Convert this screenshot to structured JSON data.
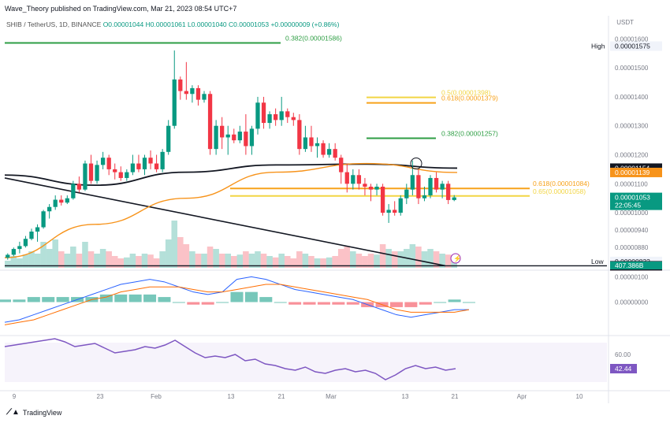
{
  "header": {
    "published": "Wave_Theory published on TradingView.com, Mar 21, 2023 08:54 UTC+7"
  },
  "ohlc": {
    "symbol": "SHIB / TetherUS, 1D, BINANCE",
    "open": "O0.00001044",
    "high": "H0.00001061",
    "low": "L0.00001040",
    "close": "C0.00001053",
    "change": "+0.00000009 (+0.86%)"
  },
  "currency": "USDT",
  "colors": {
    "up": "#089981",
    "down": "#f23645",
    "ema": "#f7931a",
    "ema200": "#131722",
    "fib_green": "#2e9e44",
    "fib_orange": "#f7a21b",
    "fib_yellow": "#f2d544",
    "macd": "#2962ff",
    "signal": "#ff6d00",
    "rsi": "#7e57c2"
  },
  "chart_data": [
    {
      "type": "line",
      "panel": "price",
      "ylim": [
        8.1e-06,
        1.62e-05
      ],
      "y_ticks": [
        "0.00001600",
        "0.00001500",
        "0.00001400",
        "0.00001300",
        "0.00001200",
        "0.00001100",
        "0.00001000",
        "0.00000940",
        "0.00000880"
      ],
      "x_ticks": [
        "9",
        "23",
        "Feb",
        "13",
        "21",
        "Mar",
        "13",
        "21",
        "Apr",
        "10"
      ],
      "candles": [
        [
          8.45e-06,
          8.6e-06,
          8.38e-06,
          8.55e-06
        ],
        [
          8.55e-06,
          8.8e-06,
          8.5e-06,
          8.75e-06
        ],
        [
          8.75e-06,
          9e-06,
          8.6e-06,
          8.85e-06
        ],
        [
          8.85e-06,
          9.2e-06,
          8.8e-06,
          9.1e-06
        ],
        [
          9.1e-06,
          9.45e-06,
          9.05e-06,
          9.35e-06
        ],
        [
          9.35e-06,
          9.6e-06,
          9e-06,
          9.5e-06
        ],
        [
          9.5e-06,
          1.01e-05,
          9.45e-06,
          1.005e-05
        ],
        [
          1.005e-05,
          1.03e-05,
          9.8e-06,
          1.02e-05
        ],
        [
          1.02e-05,
          1.06e-05,
          1.01e-05,
          1.045e-05
        ],
        [
          1.045e-05,
          1.06e-05,
          1.025e-05,
          1.035e-05
        ],
        [
          1.035e-05,
          1.06e-05,
          1.03e-05,
          1.05e-05
        ],
        [
          1.05e-05,
          1.11e-05,
          1.045e-05,
          1.1e-05
        ],
        [
          1.1e-05,
          1.125e-05,
          1.07e-05,
          1.08e-05
        ],
        [
          1.08e-05,
          1.18e-05,
          1.075e-05,
          1.17e-05
        ],
        [
          1.17e-05,
          1.2e-05,
          1.1e-05,
          1.11e-05
        ],
        [
          1.11e-05,
          1.18e-05,
          1.1e-05,
          1.165e-05
        ],
        [
          1.165e-05,
          1.21e-05,
          1.15e-05,
          1.19e-05
        ],
        [
          1.19e-05,
          1.2e-05,
          1.13e-05,
          1.15e-05
        ],
        [
          1.15e-05,
          1.17e-05,
          1.115e-05,
          1.14e-05
        ],
        [
          1.14e-05,
          1.16e-05,
          1.11e-05,
          1.12e-05
        ],
        [
          1.12e-05,
          1.15e-05,
          1.11e-05,
          1.14e-05
        ],
        [
          1.14e-05,
          1.2e-05,
          1.13e-05,
          1.17e-05
        ],
        [
          1.17e-05,
          1.2e-05,
          1.14e-05,
          1.15e-05
        ],
        [
          1.15e-05,
          1.2e-05,
          1.13e-05,
          1.19e-05
        ],
        [
          1.19e-05,
          1.215e-05,
          1.15e-05,
          1.17e-05
        ],
        [
          1.17e-05,
          1.2e-05,
          1.14e-05,
          1.15e-05
        ],
        [
          1.15e-05,
          1.22e-05,
          1.14e-05,
          1.21e-05
        ],
        [
          1.21e-05,
          1.32e-05,
          1.2e-05,
          1.3e-05
        ],
        [
          1.3e-05,
          1.56e-05,
          1.29e-05,
          1.46e-05
        ],
        [
          1.46e-05,
          1.47e-05,
          1.39e-05,
          1.42e-05
        ],
        [
          1.42e-05,
          1.52e-05,
          1.39e-05,
          1.41e-05
        ],
        [
          1.41e-05,
          1.44e-05,
          1.38e-05,
          1.43e-05
        ],
        [
          1.43e-05,
          1.44e-05,
          1.37e-05,
          1.39e-05
        ],
        [
          1.39e-05,
          1.42e-05,
          1.38e-05,
          1.41e-05
        ],
        [
          1.41e-05,
          1.42e-05,
          1.2e-05,
          1.22e-05
        ],
        [
          1.22e-05,
          1.32e-05,
          1.2e-05,
          1.3e-05
        ],
        [
          1.3e-05,
          1.33e-05,
          1.22e-05,
          1.26e-05
        ],
        [
          1.26e-05,
          1.3e-05,
          1.2e-05,
          1.27e-05
        ],
        [
          1.27e-05,
          1.29e-05,
          1.24e-05,
          1.25e-05
        ],
        [
          1.25e-05,
          1.3e-05,
          1.24e-05,
          1.28e-05
        ],
        [
          1.28e-05,
          1.34e-05,
          1.2e-05,
          1.23e-05
        ],
        [
          1.23e-05,
          1.3e-05,
          1.2e-05,
          1.29e-05
        ],
        [
          1.29e-05,
          1.4e-05,
          1.27e-05,
          1.38e-05
        ],
        [
          1.38e-05,
          1.4e-05,
          1.29e-05,
          1.31e-05
        ],
        [
          1.31e-05,
          1.35e-05,
          1.29e-05,
          1.34e-05
        ],
        [
          1.34e-05,
          1.36e-05,
          1.3e-05,
          1.32e-05
        ],
        [
          1.32e-05,
          1.4e-05,
          1.3e-05,
          1.35e-05
        ],
        [
          1.35e-05,
          1.36e-05,
          1.31e-05,
          1.33e-05
        ],
        [
          1.33e-05,
          1.345e-05,
          1.3e-05,
          1.32e-05
        ],
        [
          1.32e-05,
          1.34e-05,
          1.2e-05,
          1.22e-05
        ],
        [
          1.22e-05,
          1.3e-05,
          1.21e-05,
          1.26e-05
        ],
        [
          1.26e-05,
          1.3e-05,
          1.21e-05,
          1.23e-05
        ],
        [
          1.23e-05,
          1.26e-05,
          1.19e-05,
          1.24e-05
        ],
        [
          1.24e-05,
          1.25e-05,
          1.19e-05,
          1.2e-05
        ],
        [
          1.2e-05,
          1.24e-05,
          1.19e-05,
          1.22e-05
        ],
        [
          1.22e-05,
          1.24e-05,
          1.18e-05,
          1.19e-05
        ],
        [
          1.19e-05,
          1.2e-05,
          1.1e-05,
          1.14e-05
        ],
        [
          1.14e-05,
          1.17e-05,
          1.07e-05,
          1.1e-05
        ],
        [
          1.1e-05,
          1.15e-05,
          1.08e-05,
          1.13e-05
        ],
        [
          1.13e-05,
          1.15e-05,
          1.08e-05,
          1.1e-05
        ],
        [
          1.1e-05,
          1.12e-05,
          1.06e-05,
          1.09e-05
        ],
        [
          1.09e-05,
          1.1e-05,
          1.04e-05,
          1.08e-05
        ],
        [
          1.08e-05,
          1.1e-05,
          1.06e-05,
          1.09e-05
        ],
        [
          1.09e-05,
          1.1e-05,
          9.9e-06,
          1e-05
        ],
        [
          1e-05,
          1.03e-05,
          9.65e-06,
          1.01e-05
        ],
        [
          1.01e-05,
          1.04e-05,
          9.9e-06,
          1e-05
        ],
        [
          1e-05,
          1.06e-05,
          9.9e-06,
          1.05e-05
        ],
        [
          1.05e-05,
          1.1e-05,
          1.03e-05,
          1.08e-05
        ],
        [
          1.08e-05,
          1.18e-05,
          1.06e-05,
          1.13e-05
        ],
        [
          1.13e-05,
          1.15e-05,
          1.03e-05,
          1.05e-05
        ],
        [
          1.05e-05,
          1.09e-05,
          1.04e-05,
          1.06e-05
        ],
        [
          1.06e-05,
          1.13e-05,
          1.05e-05,
          1.12e-05
        ],
        [
          1.12e-05,
          1.14e-05,
          1.07e-05,
          1.08e-05
        ],
        [
          1.08e-05,
          1.11e-05,
          1.05e-05,
          1.1e-05
        ],
        [
          1.1e-05,
          1.11e-05,
          1.03e-05,
          1.044e-05
        ],
        [
          1.044e-05,
          1.061e-05,
          1.04e-05,
          1.053e-05
        ]
      ],
      "volume": [
        0.15,
        0.25,
        0.2,
        0.28,
        0.35,
        0.3,
        0.55,
        0.4,
        0.6,
        0.35,
        0.3,
        0.45,
        0.3,
        0.55,
        0.35,
        0.3,
        0.4,
        0.35,
        0.25,
        0.2,
        0.22,
        0.3,
        0.25,
        0.3,
        0.28,
        0.2,
        0.35,
        0.6,
        1.0,
        0.65,
        0.5,
        0.35,
        0.3,
        0.3,
        0.45,
        0.4,
        0.3,
        0.3,
        0.25,
        0.28,
        0.35,
        0.3,
        0.35,
        0.3,
        0.25,
        0.22,
        0.3,
        0.25,
        0.2,
        0.35,
        0.3,
        0.25,
        0.2,
        0.2,
        0.22,
        0.25,
        0.4,
        0.45,
        0.35,
        0.3,
        0.25,
        0.3,
        0.28,
        0.5,
        0.4,
        0.35,
        0.35,
        0.4,
        0.5,
        0.45,
        0.35,
        0.4,
        0.35,
        0.3,
        0.28,
        0.2
      ],
      "ema50_levels": [
        8.45e-06,
        9.6e-06,
        1.05e-05,
        1.14e-05,
        1.17e-05,
        1.139e-05
      ],
      "ema200_levels": [
        1.13e-05,
        1.095e-05,
        1.14e-05,
        1.165e-05,
        1.168e-05,
        1.154e-05
      ],
      "trendline_levels": [
        1.12e-05,
        8.17e-06
      ],
      "horizontal_levels": [
        {
          "label": "0.382(0.00001586)",
          "value": 1.586e-05,
          "color": "#2e9e44"
        },
        {
          "label": "0.5(0.00001398)",
          "value": 1.398e-05,
          "color": "#f2d544"
        },
        {
          "label": "0.618(0.00001379)",
          "value": 1.379e-05,
          "color": "#f7a21b"
        },
        {
          "label": "0.382(0.00001257)",
          "value": 1.257e-05,
          "color": "#2e9e44"
        },
        {
          "label": "0.618(0.00001084)",
          "value": 1.084e-05,
          "color": "#f7a21b"
        },
        {
          "label": "0.65(0.00001058)",
          "value": 1.058e-05,
          "color": "#f2d544"
        }
      ],
      "price_tags": [
        {
          "label": "High",
          "value": "0.00001575",
          "y": 1.575e-05,
          "style": "plain"
        },
        {
          "label": "",
          "value": "0.00001154",
          "y": 1.154e-05,
          "style": "black"
        },
        {
          "label": "",
          "value": "0.00001139",
          "y": 1.139e-05,
          "style": "orange"
        },
        {
          "label": "",
          "value": "0.00001053",
          "y": 1.053e-05,
          "style": "green",
          "sub": "22:05:45"
        },
        {
          "label": "Low",
          "value": "0.00000832",
          "y": 8.32e-06,
          "style": "plain"
        },
        {
          "label": "",
          "value": "0.00000817",
          "y": 8.17e-06,
          "style": "black"
        }
      ],
      "volume_tag": "407.386B"
    },
    {
      "type": "line",
      "panel": "macd",
      "ylim": [
        -1.2e-06,
        1.2e-06
      ],
      "y_ticks": [
        "0.00000100",
        "0.00000000"
      ],
      "macd": [
        -8e-07,
        -7e-07,
        -5e-07,
        -3e-07,
        -1e-07,
        1e-07,
        3e-07,
        5e-07,
        7e-07,
        8e-07,
        9e-07,
        8e-07,
        6e-07,
        4e-07,
        3e-07,
        4e-07,
        9e-07,
        1e-06,
        9e-07,
        7e-07,
        5e-07,
        4e-07,
        3e-07,
        2e-07,
        1e-07,
        -1e-07,
        -3e-07,
        -5e-07,
        -6e-07,
        -5e-07,
        -4e-07,
        -3e-07,
        -3e-07
      ],
      "signal": [
        -9e-07,
        -8e-07,
        -7e-07,
        -5e-07,
        -3e-07,
        -1e-07,
        1e-07,
        2e-07,
        4e-07,
        5e-07,
        6e-07,
        6e-07,
        6e-07,
        5e-07,
        4e-07,
        4e-07,
        5e-07,
        6e-07,
        7e-07,
        7e-07,
        6e-07,
        5e-07,
        4e-07,
        3e-07,
        2e-07,
        1e-07,
        -1e-07,
        -3e-07,
        -4e-07,
        -4e-07,
        -4e-07,
        -4e-07,
        -3e-07
      ]
    },
    {
      "type": "line",
      "panel": "rsi",
      "ylim": [
        20,
        80
      ],
      "y_ticks": [
        "60.00"
      ],
      "rsi": [
        70,
        72,
        74,
        76,
        78,
        80,
        76,
        70,
        72,
        74,
        68,
        62,
        64,
        66,
        70,
        68,
        72,
        78,
        70,
        62,
        56,
        58,
        56,
        60,
        52,
        54,
        48,
        46,
        42,
        40,
        44,
        38,
        36,
        40,
        42,
        38,
        40,
        36,
        28,
        34,
        42,
        46,
        42,
        44,
        40,
        42
      ],
      "rsi_tag": "42.44"
    }
  ],
  "footer": {
    "brand": "TradingView"
  }
}
